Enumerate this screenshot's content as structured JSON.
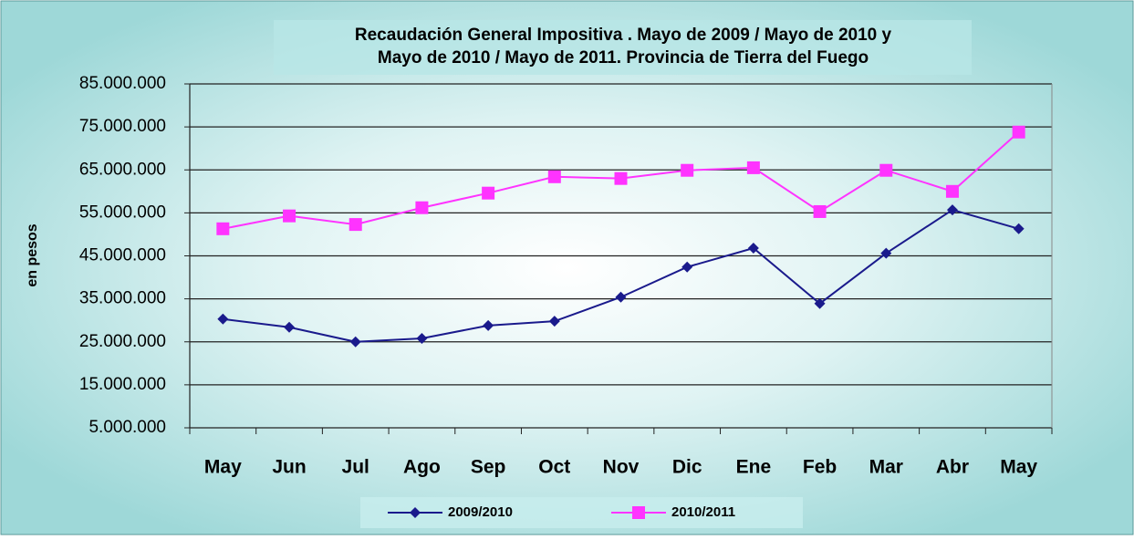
{
  "chart_data": {
    "type": "line",
    "title": [
      "Recaudación General Impositiva . Mayo de 2009 / Mayo de 2010  y",
      "Mayo de 2010 / Mayo de 2011. Provincia de Tierra del Fuego"
    ],
    "y_label": "en pesos",
    "categories": [
      "May",
      "Jun",
      "Jul",
      "Ago",
      "Sep",
      "Oct",
      "Nov",
      "Dic",
      "Ene",
      "Feb",
      "Mar",
      "Abr",
      "May"
    ],
    "series": [
      {
        "name": "2009/2010",
        "color": "#1a1a8c",
        "marker": "diamond",
        "values": [
          30300000,
          28400000,
          25000000,
          25800000,
          28800000,
          29800000,
          35400000,
          42400000,
          46800000,
          33900000,
          45600000,
          55700000,
          51300000
        ]
      },
      {
        "name": "2010/2011",
        "color": "#ff33ff",
        "marker": "square",
        "values": [
          51300000,
          54300000,
          52300000,
          56200000,
          59600000,
          63400000,
          63000000,
          64900000,
          65500000,
          55300000,
          64900000,
          60000000,
          73800000
        ]
      }
    ],
    "ylim": [
      5000000,
      85000000
    ],
    "yticks": [
      {
        "value": 5000000,
        "label": "5.000.000"
      },
      {
        "value": 15000000,
        "label": "15.000.000"
      },
      {
        "value": 25000000,
        "label": "25.000.000"
      },
      {
        "value": 35000000,
        "label": "35.000.000"
      },
      {
        "value": 45000000,
        "label": "45.000.000"
      },
      {
        "value": 55000000,
        "label": "55.000.000"
      },
      {
        "value": 65000000,
        "label": "65.000.000"
      },
      {
        "value": 75000000,
        "label": "75.000.000"
      },
      {
        "value": 85000000,
        "label": "85.000.000"
      }
    ],
    "grid": true,
    "legend": "bottom"
  }
}
